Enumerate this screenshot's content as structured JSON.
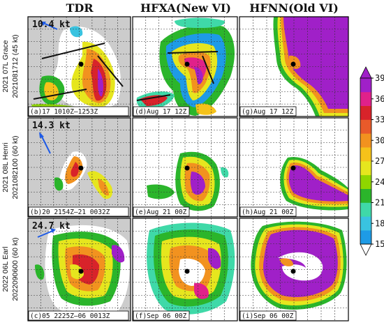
{
  "chart_data": {
    "type": "heatmap",
    "columns": [
      "TDR",
      "HFXA(New VI)",
      "HFNN(Old VI)"
    ],
    "rows": [
      {
        "label_line1": "2021 07L Grace",
        "label_line2": "2021081712 (45 kt)",
        "shear_speed": "10.4 kt",
        "panels": [
          "(a)17 1010Z–1253Z",
          "(d)Aug 17 12Z",
          "(g)Aug 17 12Z"
        ]
      },
      {
        "label_line1": "2021 08L Henri",
        "label_line2": "2021082100 (60 kt)",
        "shear_speed": "14.3 kt",
        "panels": [
          "(b)20 2154Z–21 0032Z",
          "(e)Aug 21 00Z",
          "(h)Aug 21 00Z"
        ]
      },
      {
        "label_line1": "2022 06L Earl",
        "label_line2": "2022090600 (60 kt)",
        "shear_speed": "24.7 kt",
        "panels": [
          "(c)05 2225Z–06 0013Z",
          "(f)Sep 06 00Z",
          "(i)Sep 06 00Z"
        ]
      }
    ],
    "colorbar": {
      "ticks": [
        15,
        18,
        21,
        24,
        27,
        30,
        33,
        36,
        39
      ],
      "range": [
        15,
        39
      ],
      "extend": "both",
      "colors": [
        "#1e9be6",
        "#39c3e0",
        "#3fd9a8",
        "#2bb52b",
        "#8fd600",
        "#e6e61e",
        "#f5c21a",
        "#f2921f",
        "#e85a2a",
        "#d8232a",
        "#e0218a",
        "#a020c8"
      ]
    },
    "background_colors": {
      "no_data": "#cccccc",
      "grid": "#333333"
    }
  }
}
